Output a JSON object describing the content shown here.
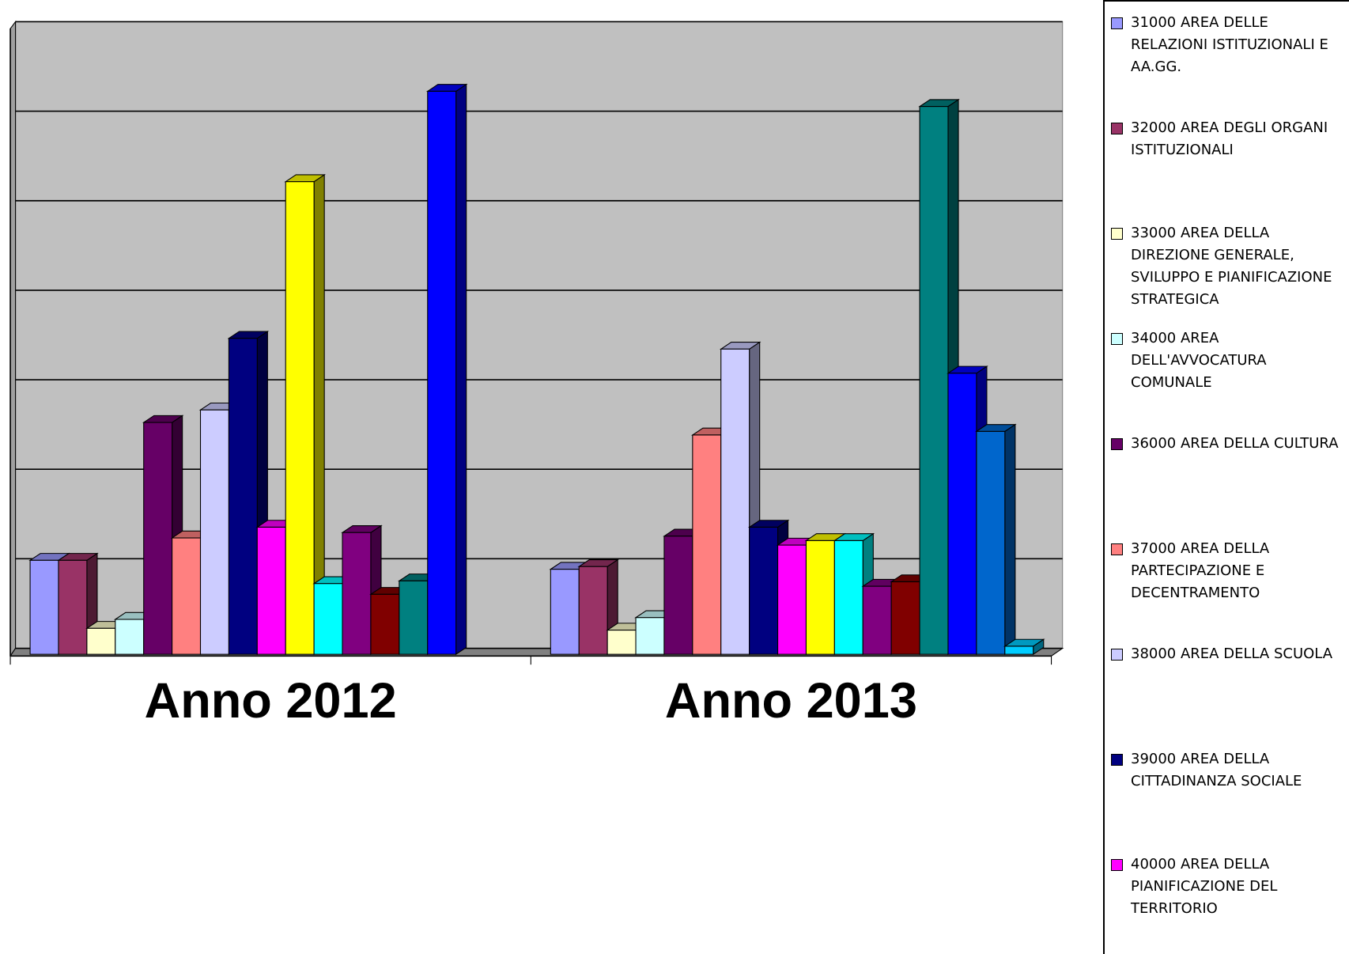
{
  "chart_data": {
    "type": "bar",
    "categories": [
      "Anno 2012",
      "Anno 2013"
    ],
    "ylim": [
      0,
      7
    ],
    "yticks": [
      0,
      1,
      2,
      3,
      4,
      5,
      6,
      7
    ],
    "grid": true,
    "series": [
      {
        "name": "31000 AREA DELLE RELAZIONI ISTITUZIONALI E AA.GG.",
        "color": "#9999ff",
        "values": [
          1.05,
          0.95
        ]
      },
      {
        "name": "32000 AREA DEGLI ORGANI ISTITUZIONALI",
        "color": "#993366",
        "values": [
          1.05,
          0.98
        ]
      },
      {
        "name": "33000 AREA DELLA DIREZIONE GENERALE, SVILUPPO E PIANIFICAZIONE STRATEGICA",
        "color": "#ffffcc",
        "values": [
          0.29,
          0.27
        ]
      },
      {
        "name": "34000 AREA DELL'AVVOCATURA COMUNALE",
        "color": "#ccffff",
        "values": [
          0.39,
          0.41
        ]
      },
      {
        "name": "36000 AREA DELLA CULTURA",
        "color": "#660066",
        "values": [
          2.59,
          1.32
        ]
      },
      {
        "name": "37000 AREA DELLA PARTECIPAZIONE E DECENTRAMENTO",
        "color": "#ff8080",
        "values": [
          1.3,
          2.45
        ]
      },
      {
        "name": "38000 AREA DELLA SCUOLA",
        "color": "#ccccff",
        "values": [
          2.73,
          3.41
        ]
      },
      {
        "name": "39000 AREA DELLA CITTADINANZA SOCIALE",
        "color": "#000080",
        "values": [
          3.53,
          1.42
        ]
      },
      {
        "name": "40000 AREA DELLA PIANIFICAZIONE DEL TERRITORIO",
        "color": "#ff00ff",
        "values": [
          1.42,
          1.22
        ]
      },
      {
        "name": null,
        "color": "#ffff00",
        "values": [
          5.28,
          1.27
        ]
      },
      {
        "name": null,
        "color": "#00ffff",
        "values": [
          0.79,
          1.27
        ]
      },
      {
        "name": null,
        "color": "#800080",
        "values": [
          1.36,
          0.76
        ]
      },
      {
        "name": null,
        "color": "#800000",
        "values": [
          0.67,
          0.81
        ]
      },
      {
        "name": null,
        "color": "#008080",
        "values": [
          0.82,
          6.12
        ]
      },
      {
        "name": null,
        "color": "#0000ff",
        "values": [
          6.29,
          3.14
        ]
      },
      {
        "name": null,
        "color": "#0066cc",
        "values": [
          null,
          2.49
        ]
      },
      {
        "name": null,
        "color": "#00ccff",
        "values": [
          null,
          0.09
        ]
      }
    ]
  }
}
